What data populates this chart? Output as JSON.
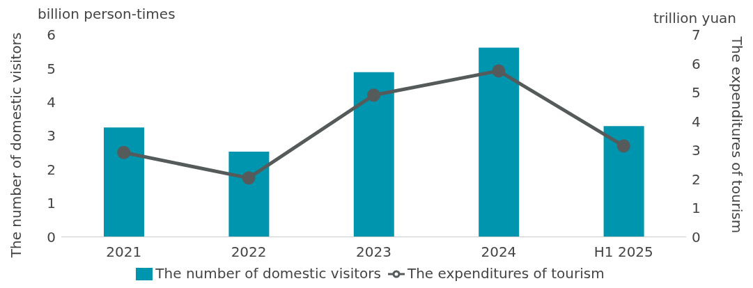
{
  "chart_data": {
    "type": "bar",
    "categories": [
      "2021",
      "2022",
      "2023",
      "2024",
      "H1 2025"
    ],
    "series": [
      {
        "name": "The number of domestic visitors",
        "color": "#0095ae",
        "values": [
          3.25,
          2.53,
          4.89,
          5.62,
          3.29
        ]
      },
      {
        "name": "The expenditures of tourism",
        "type": "line",
        "axis": "y2",
        "color": "#555a5a",
        "values": [
          2.92,
          2.04,
          4.91,
          5.75,
          3.15
        ]
      }
    ],
    "ylabel": "The number of domestic visitors",
    "y2label": "The expenditures of tourism",
    "annotations": [
      "billion person-times",
      "trillion yuan"
    ],
    "ylim": [
      0,
      6
    ],
    "yticks": [
      0,
      1,
      2,
      3,
      4,
      5,
      6
    ],
    "y2lim": [
      0,
      7
    ],
    "y2ticks": [
      0,
      1,
      2,
      3,
      4,
      5,
      6,
      7
    ],
    "grid": false,
    "legend": "bottom",
    "marker": "circle",
    "line_style": "solid"
  }
}
